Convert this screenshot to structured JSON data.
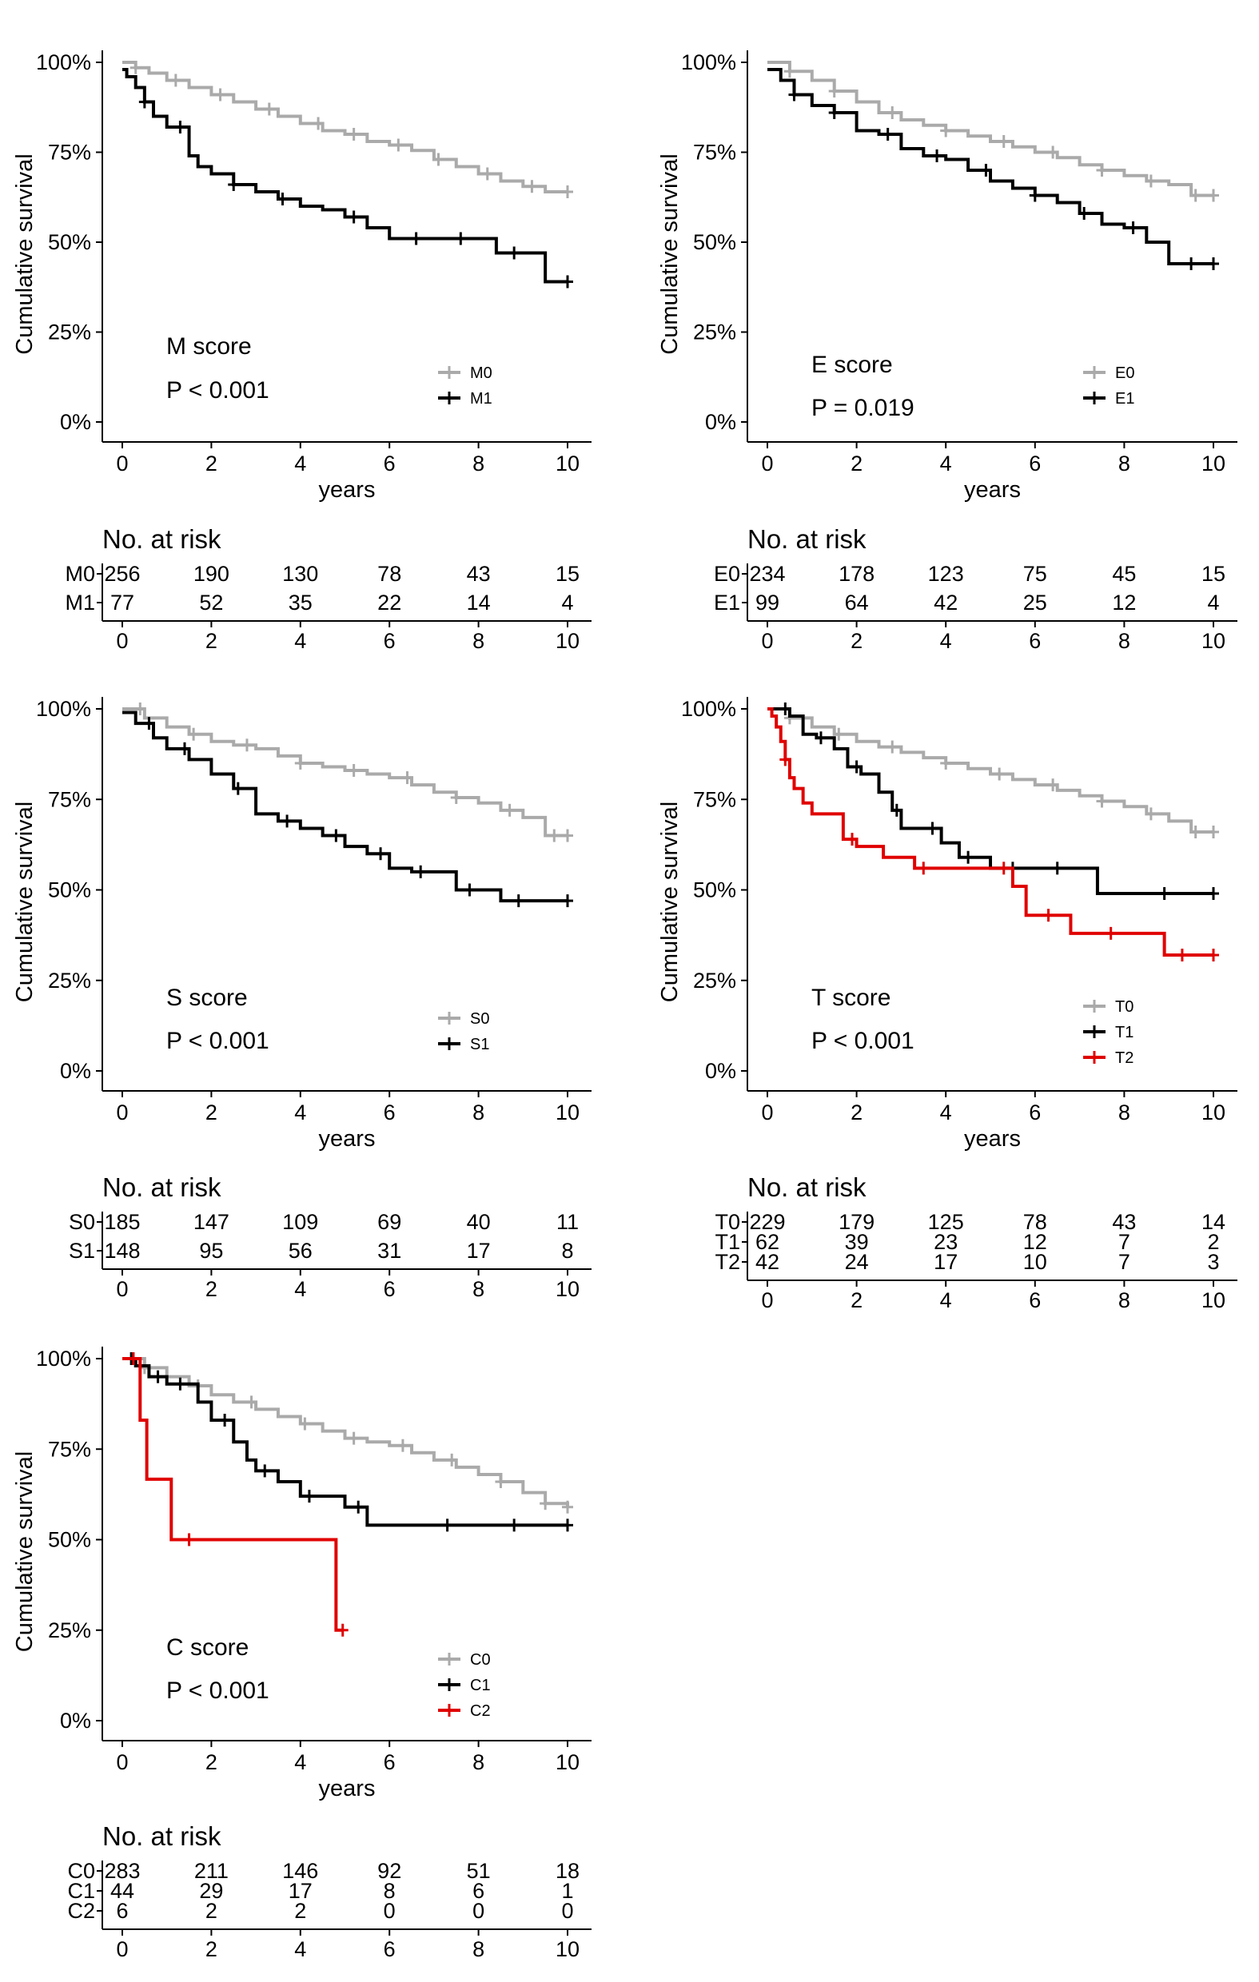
{
  "chart_data": [
    {
      "type": "line",
      "title": "",
      "xlabel": "years",
      "ylabel": "Cumulative survival",
      "xlim": [
        0,
        10
      ],
      "ylim": [
        0,
        100
      ],
      "x_ticks": [
        "0",
        "2",
        "4",
        "6",
        "8",
        "10"
      ],
      "y_ticks": [
        "0%",
        "25%",
        "50%",
        "75%",
        "100%"
      ],
      "annotation": "M score",
      "p_value": "P < 0.001",
      "legend_position": "bottom-right",
      "series": [
        {
          "name": "M0",
          "color": "#aaaaaa",
          "x": [
            0,
            0.3,
            0.6,
            1,
            1.5,
            2,
            2.5,
            3,
            3.5,
            4,
            4.5,
            5,
            5.5,
            6,
            6.5,
            7,
            7.5,
            8,
            8.5,
            9,
            9.5,
            10
          ],
          "y": [
            100,
            98.5,
            97,
            95,
            93,
            91,
            89,
            87,
            85,
            83,
            81,
            80,
            78,
            77,
            75.5,
            73,
            71,
            69,
            67,
            65.5,
            64,
            64
          ],
          "censor_x": [
            0.3,
            1.2,
            2.2,
            3.3,
            4.4,
            5.2,
            6.2,
            7.1,
            8.2,
            9.2,
            10
          ]
        },
        {
          "name": "M1",
          "color": "#000000",
          "x": [
            0,
            0.1,
            0.3,
            0.5,
            0.7,
            1,
            1.5,
            1.7,
            2,
            2.5,
            3,
            3.5,
            4,
            4.5,
            5,
            5.5,
            6,
            7,
            8,
            8.4,
            9,
            9.5,
            10
          ],
          "y": [
            98,
            96,
            93,
            89,
            85,
            82,
            74,
            71,
            69,
            66,
            64,
            62,
            60,
            59,
            57,
            54,
            51,
            51,
            51,
            47,
            47,
            39,
            39
          ],
          "censor_x": [
            0.5,
            1.3,
            2.5,
            3.6,
            5.2,
            6.6,
            7.6,
            8.8,
            10
          ]
        }
      ],
      "risk_table": {
        "title": "No. at risk",
        "rows": [
          {
            "label": "M0",
            "values": [
              "256",
              "190",
              "130",
              "78",
              "43",
              "15"
            ]
          },
          {
            "label": "M1",
            "values": [
              "77",
              "52",
              "35",
              "22",
              "14",
              "4"
            ]
          }
        ]
      }
    },
    {
      "type": "line",
      "title": "",
      "xlabel": "years",
      "ylabel": "Cumulative survival",
      "xlim": [
        0,
        10
      ],
      "ylim": [
        0,
        100
      ],
      "x_ticks": [
        "0",
        "2",
        "4",
        "6",
        "8",
        "10"
      ],
      "y_ticks": [
        "0%",
        "25%",
        "50%",
        "75%",
        "100%"
      ],
      "annotation": "E score",
      "p_value": "P = 0.019",
      "legend_position": "bottom-right",
      "series": [
        {
          "name": "E0",
          "color": "#aaaaaa",
          "x": [
            0,
            0.5,
            1,
            1.5,
            2,
            2.5,
            3,
            3.5,
            4,
            4.5,
            5,
            5.5,
            6,
            6.5,
            7,
            7.5,
            8,
            8.5,
            9,
            9.5,
            10
          ],
          "y": [
            100,
            97.5,
            95,
            92,
            89,
            86,
            84,
            82.5,
            81,
            79.5,
            78,
            76.5,
            75,
            73.5,
            71.5,
            70,
            68.5,
            67,
            66,
            63,
            63
          ],
          "censor_x": [
            0.5,
            1.5,
            2.8,
            4,
            5.3,
            6.4,
            7.5,
            8.6,
            9.6,
            10
          ]
        },
        {
          "name": "E1",
          "color": "#000000",
          "x": [
            0,
            0.3,
            0.6,
            1,
            1.5,
            2,
            2.5,
            3,
            3.5,
            4,
            4.5,
            5,
            5.5,
            6,
            6.5,
            7,
            7.5,
            8,
            8.5,
            9,
            10
          ],
          "y": [
            98,
            95,
            91,
            88,
            86,
            81,
            80,
            76,
            74,
            73,
            70,
            67,
            65,
            63,
            61,
            58,
            55,
            54,
            50,
            44,
            44
          ],
          "censor_x": [
            0.6,
            1.5,
            2.7,
            3.8,
            4.9,
            6,
            7.1,
            8.2,
            9.5,
            10
          ]
        }
      ],
      "risk_table": {
        "title": "No. at risk",
        "rows": [
          {
            "label": "E0",
            "values": [
              "234",
              "178",
              "123",
              "75",
              "45",
              "15"
            ]
          },
          {
            "label": "E1",
            "values": [
              "99",
              "64",
              "42",
              "25",
              "12",
              "4"
            ]
          }
        ]
      }
    },
    {
      "type": "line",
      "title": "",
      "xlabel": "years",
      "ylabel": "Cumulative survival",
      "xlim": [
        0,
        10
      ],
      "ylim": [
        0,
        100
      ],
      "x_ticks": [
        "0",
        "2",
        "4",
        "6",
        "8",
        "10"
      ],
      "y_ticks": [
        "0%",
        "25%",
        "50%",
        "75%",
        "100%"
      ],
      "annotation": "S score",
      "p_value": "P < 0.001",
      "legend_position": "bottom-right",
      "series": [
        {
          "name": "S0",
          "color": "#aaaaaa",
          "x": [
            0,
            0.5,
            1,
            1.5,
            2,
            2.5,
            3,
            3.5,
            4,
            4.5,
            5,
            5.5,
            6,
            6.5,
            7,
            7.5,
            8,
            8.5,
            9,
            9.5,
            10
          ],
          "y": [
            100,
            97.5,
            95,
            93,
            91,
            90,
            89,
            87,
            85,
            84,
            83,
            82,
            81,
            79,
            77,
            75.5,
            74,
            72,
            70,
            65,
            65
          ],
          "censor_x": [
            0.4,
            1.6,
            2.8,
            4,
            5.2,
            6.4,
            7.5,
            8.7,
            9.7,
            10
          ]
        },
        {
          "name": "S1",
          "color": "#000000",
          "x": [
            0,
            0.3,
            0.7,
            1,
            1.5,
            2,
            2.5,
            3,
            3.5,
            4,
            4.5,
            5,
            5.5,
            6,
            6.5,
            7,
            7.5,
            8,
            8.5,
            10
          ],
          "y": [
            99,
            96,
            92,
            89,
            86,
            82,
            78,
            71,
            69,
            67,
            65,
            62,
            60,
            56,
            55,
            55,
            50,
            50,
            47,
            47
          ],
          "censor_x": [
            0.6,
            1.4,
            2.6,
            3.7,
            4.8,
            5.8,
            6.7,
            7.8,
            8.9,
            10
          ]
        }
      ],
      "risk_table": {
        "title": "No. at risk",
        "rows": [
          {
            "label": "S0",
            "values": [
              "185",
              "147",
              "109",
              "69",
              "40",
              "11"
            ]
          },
          {
            "label": "S1",
            "values": [
              "148",
              "95",
              "56",
              "31",
              "17",
              "8"
            ]
          }
        ]
      }
    },
    {
      "type": "line",
      "title": "",
      "xlabel": "years",
      "ylabel": "Cumulative survival",
      "xlim": [
        0,
        10
      ],
      "ylim": [
        0,
        100
      ],
      "x_ticks": [
        "0",
        "2",
        "4",
        "6",
        "8",
        "10"
      ],
      "y_ticks": [
        "0%",
        "25%",
        "50%",
        "75%",
        "100%"
      ],
      "annotation": "T score",
      "p_value": "P < 0.001",
      "legend_position": "bottom-right",
      "series": [
        {
          "name": "T0",
          "color": "#aaaaaa",
          "x": [
            0,
            0.5,
            1,
            1.5,
            2,
            2.5,
            3,
            3.5,
            4,
            4.5,
            5,
            5.5,
            6,
            6.5,
            7,
            7.5,
            8,
            8.5,
            9,
            9.5,
            10
          ],
          "y": [
            100,
            97.5,
            95,
            93,
            91,
            89.5,
            88,
            86.5,
            85,
            83.5,
            82,
            80.5,
            79,
            77.5,
            76,
            74.5,
            73,
            71,
            69,
            66,
            66
          ],
          "censor_x": [
            0.5,
            1.6,
            2.8,
            4,
            5.2,
            6.4,
            7.5,
            8.6,
            9.6,
            10
          ]
        },
        {
          "name": "T1",
          "color": "#000000",
          "x": [
            0,
            0.5,
            0.8,
            1.1,
            1.5,
            1.8,
            2.1,
            2.5,
            2.8,
            3,
            3.5,
            3.9,
            4.3,
            5,
            6,
            7.4,
            8,
            9,
            10
          ],
          "y": [
            100,
            98,
            93,
            92,
            89,
            84,
            82,
            77,
            72,
            67,
            67,
            63,
            59,
            56,
            56,
            49,
            49,
            49,
            49
          ],
          "censor_x": [
            0.4,
            1.2,
            2,
            2.9,
            3.7,
            4.5,
            5.5,
            6.5,
            8.9,
            10
          ]
        },
        {
          "name": "T2",
          "color": "#e00000",
          "x": [
            0,
            0.1,
            0.2,
            0.3,
            0.4,
            0.5,
            0.6,
            0.8,
            1,
            1.5,
            1.7,
            2,
            2.6,
            3,
            3.3,
            5,
            5.5,
            5.8,
            6.5,
            6.8,
            8.9,
            10
          ],
          "y": [
            100,
            98,
            95,
            91,
            86,
            81,
            78,
            74,
            71,
            71,
            64,
            62,
            59,
            59,
            56,
            56,
            51,
            43,
            43,
            38,
            32,
            32
          ],
          "censor_x": [
            0.4,
            1.9,
            3.5,
            5.3,
            6.3,
            7.7,
            9.3,
            10
          ]
        }
      ],
      "risk_table": {
        "title": "No. at risk",
        "rows": [
          {
            "label": "T0",
            "values": [
              "229",
              "179",
              "125",
              "78",
              "43",
              "14"
            ]
          },
          {
            "label": "T1",
            "values": [
              "62",
              "39",
              "23",
              "12",
              "7",
              "2"
            ]
          },
          {
            "label": "T2",
            "values": [
              "42",
              "24",
              "17",
              "10",
              "7",
              "3"
            ]
          }
        ]
      }
    },
    {
      "type": "line",
      "title": "",
      "xlabel": "years",
      "ylabel": "Cumulative survival",
      "xlim": [
        0,
        10
      ],
      "ylim": [
        0,
        100
      ],
      "x_ticks": [
        "0",
        "2",
        "4",
        "6",
        "8",
        "10"
      ],
      "y_ticks": [
        "0%",
        "25%",
        "50%",
        "75%",
        "100%"
      ],
      "annotation": "C score",
      "p_value": "P < 0.001",
      "legend_position": "bottom-right",
      "series": [
        {
          "name": "C0",
          "color": "#aaaaaa",
          "x": [
            0,
            0.5,
            1,
            1.5,
            2,
            2.5,
            3,
            3.5,
            4,
            4.5,
            5,
            5.5,
            6,
            6.5,
            7,
            7.5,
            8,
            8.5,
            9,
            9.5,
            10
          ],
          "y": [
            100,
            97.5,
            95,
            92.5,
            90,
            88,
            86,
            84,
            82,
            80,
            78,
            77,
            76,
            74,
            72,
            70,
            68,
            66,
            63,
            60,
            59
          ],
          "censor_x": [
            0.5,
            1.7,
            2.9,
            4.1,
            5.2,
            6.3,
            7.4,
            8.5,
            9.5,
            10
          ]
        },
        {
          "name": "C1",
          "color": "#000000",
          "x": [
            0,
            0.3,
            0.6,
            1,
            1.5,
            1.7,
            2,
            2.5,
            2.8,
            3,
            3.5,
            4,
            4.5,
            5,
            5.5,
            6,
            7,
            8,
            9,
            10
          ],
          "y": [
            100,
            98,
            95,
            93,
            93,
            88,
            83,
            77,
            72,
            69,
            66,
            62,
            62,
            59,
            54,
            54,
            54,
            54,
            54,
            54
          ],
          "censor_x": [
            0.2,
            0.8,
            1.3,
            2.3,
            3.2,
            4.2,
            5.3,
            7.3,
            8.8,
            10
          ]
        },
        {
          "name": "C2",
          "color": "#e00000",
          "x": [
            0,
            0.4,
            0.55,
            1.1,
            4.8,
            4.95
          ],
          "y": [
            100,
            83,
            66.7,
            50,
            25,
            25
          ],
          "censor_x": [
            0.25,
            1.5,
            4.95
          ]
        }
      ],
      "risk_table": {
        "title": "No. at risk",
        "rows": [
          {
            "label": "C0",
            "values": [
              "283",
              "211",
              "146",
              "92",
              "51",
              "18"
            ]
          },
          {
            "label": "C1",
            "values": [
              "44",
              "29",
              "17",
              "8",
              "6",
              "1"
            ]
          },
          {
            "label": "C2",
            "values": [
              "6",
              "2",
              "2",
              "0",
              "0",
              "0"
            ]
          }
        ]
      }
    }
  ]
}
